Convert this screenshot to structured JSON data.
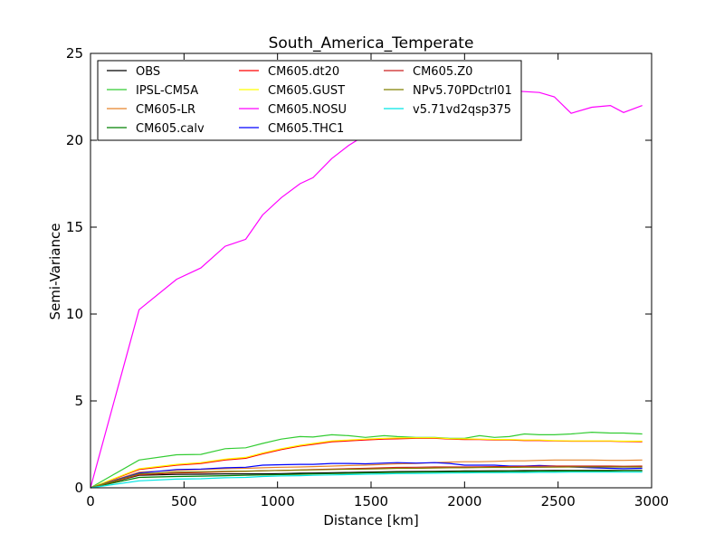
{
  "chart_data": {
    "type": "line",
    "title": "South_America_Temperate",
    "xlabel": "Distance [km]",
    "ylabel": "Semi-Variance",
    "xlim": [
      0,
      3000
    ],
    "ylim": [
      0,
      25
    ],
    "xticks": [
      "0",
      "500",
      "1000",
      "1500",
      "2000",
      "2500",
      "3000"
    ],
    "yticks": [
      "0",
      "5",
      "10",
      "15",
      "20",
      "25"
    ],
    "grid": false,
    "legend_placement": "upper-left",
    "x": [
      0,
      260,
      460,
      590,
      720,
      830,
      920,
      1020,
      1120,
      1190,
      1290,
      1380,
      1470,
      1570,
      1640,
      1740,
      1840,
      1920,
      2000,
      2080,
      2160,
      2240,
      2320,
      2400,
      2480,
      2570,
      2680,
      2780,
      2850,
      2950
    ],
    "series": [
      {
        "name": "OBS",
        "color": "#000000",
        "values": [
          0,
          0.72,
          0.77,
          0.78,
          0.8,
          0.8,
          0.8,
          0.82,
          0.84,
          0.85,
          0.87,
          0.88,
          0.9,
          0.92,
          0.93,
          0.94,
          0.95,
          0.96,
          0.97,
          0.97,
          0.98,
          0.98,
          0.99,
          0.99,
          1.0,
          1.0,
          1.0,
          1.0,
          1.0,
          1.0
        ]
      },
      {
        "name": "IPSL-CM5A",
        "color": "#33cc33",
        "values": [
          0,
          1.6,
          1.9,
          1.92,
          2.25,
          2.3,
          2.55,
          2.8,
          2.95,
          2.92,
          3.05,
          3.0,
          2.9,
          3.0,
          2.95,
          2.9,
          2.9,
          2.85,
          2.85,
          3.0,
          2.9,
          2.95,
          3.1,
          3.05,
          3.05,
          3.1,
          3.2,
          3.15,
          3.15,
          3.1
        ]
      },
      {
        "name": "CM605-LR",
        "color": "#e6842a",
        "values": [
          0,
          0.9,
          1.0,
          1.05,
          1.1,
          1.12,
          1.15,
          1.18,
          1.2,
          1.22,
          1.25,
          1.28,
          1.3,
          1.35,
          1.38,
          1.4,
          1.45,
          1.48,
          1.5,
          1.5,
          1.52,
          1.55,
          1.55,
          1.58,
          1.6,
          1.6,
          1.6,
          1.58,
          1.58,
          1.6
        ]
      },
      {
        "name": "CM605.calv",
        "color": "#008000",
        "values": [
          0,
          0.6,
          0.65,
          0.67,
          0.7,
          0.72,
          0.74,
          0.76,
          0.78,
          0.8,
          0.82,
          0.84,
          0.86,
          0.88,
          0.89,
          0.9,
          0.91,
          0.92,
          0.93,
          0.93,
          0.94,
          0.95,
          0.95,
          0.96,
          0.96,
          0.97,
          0.97,
          0.97,
          0.98,
          0.98
        ]
      },
      {
        "name": "CM605.dt20",
        "color": "#ff0000",
        "values": [
          0,
          1.05,
          1.3,
          1.4,
          1.6,
          1.7,
          1.95,
          2.2,
          2.4,
          2.5,
          2.65,
          2.7,
          2.75,
          2.8,
          2.82,
          2.85,
          2.85,
          2.8,
          2.78,
          2.78,
          2.75,
          2.75,
          2.72,
          2.72,
          2.7,
          2.68,
          2.68,
          2.68,
          2.66,
          2.65
        ]
      },
      {
        "name": "CM605.GUST",
        "color": "#ffff00",
        "values": [
          0,
          1.1,
          1.35,
          1.45,
          1.65,
          1.75,
          2.0,
          2.25,
          2.45,
          2.55,
          2.7,
          2.75,
          2.8,
          2.85,
          2.87,
          2.88,
          2.88,
          2.83,
          2.82,
          2.8,
          2.78,
          2.78,
          2.75,
          2.75,
          2.72,
          2.7,
          2.7,
          2.7,
          2.68,
          2.68
        ]
      },
      {
        "name": "CM605.NOSU",
        "color": "#ff00ff",
        "values": [
          0,
          10.25,
          12.0,
          12.65,
          13.9,
          14.3,
          15.7,
          16.7,
          17.5,
          17.85,
          18.95,
          19.7,
          20.3,
          20.8,
          21.2,
          21.6,
          22.0,
          22.3,
          22.5,
          22.7,
          22.8,
          22.85,
          22.8,
          22.75,
          22.5,
          21.55,
          21.9,
          22.0,
          21.6,
          22.0
        ]
      },
      {
        "name": "CM605.THC1",
        "color": "#0000ff",
        "values": [
          0,
          0.85,
          1.05,
          1.08,
          1.15,
          1.18,
          1.3,
          1.33,
          1.35,
          1.35,
          1.4,
          1.4,
          1.38,
          1.42,
          1.45,
          1.42,
          1.45,
          1.4,
          1.3,
          1.3,
          1.3,
          1.25,
          1.25,
          1.28,
          1.25,
          1.2,
          1.15,
          1.12,
          1.1,
          1.12
        ]
      },
      {
        "name": "CM605.Z0",
        "color": "#cc2222",
        "values": [
          0,
          0.75,
          0.85,
          0.88,
          0.92,
          0.95,
          0.98,
          1.0,
          1.02,
          1.05,
          1.08,
          1.1,
          1.12,
          1.15,
          1.17,
          1.18,
          1.2,
          1.2,
          1.2,
          1.21,
          1.22,
          1.22,
          1.23,
          1.24,
          1.25,
          1.25,
          1.25,
          1.25,
          1.24,
          1.25
        ]
      },
      {
        "name": "NPv5.70PDctrl01",
        "color": "#808000",
        "values": [
          0,
          0.8,
          0.9,
          0.92,
          0.95,
          0.96,
          0.98,
          1.0,
          1.02,
          1.03,
          1.05,
          1.07,
          1.08,
          1.1,
          1.12,
          1.12,
          1.14,
          1.15,
          1.15,
          1.16,
          1.17,
          1.17,
          1.18,
          1.18,
          1.19,
          1.2,
          1.2,
          1.2,
          1.2,
          1.2
        ]
      },
      {
        "name": "v5.71vd2qsp375",
        "color": "#00e5e5",
        "values": [
          0,
          0.4,
          0.5,
          0.52,
          0.58,
          0.6,
          0.65,
          0.68,
          0.7,
          0.72,
          0.74,
          0.76,
          0.78,
          0.8,
          0.82,
          0.83,
          0.84,
          0.85,
          0.86,
          0.87,
          0.87,
          0.88,
          0.88,
          0.89,
          0.89,
          0.9,
          0.9,
          0.9,
          0.9,
          0.9
        ]
      }
    ]
  }
}
